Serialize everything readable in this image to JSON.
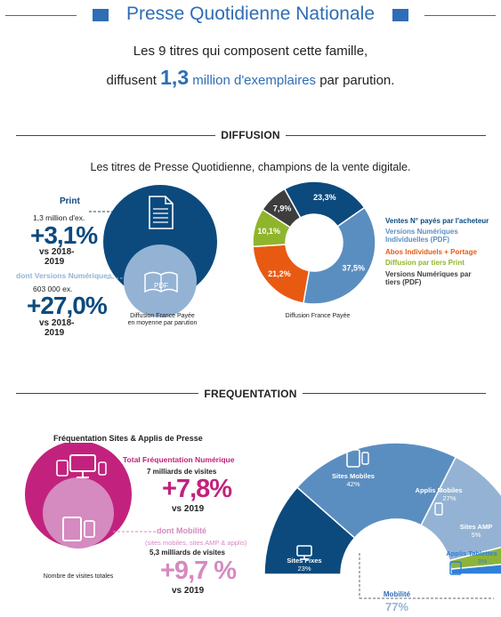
{
  "header": {
    "title": "Presse Quotidienne Nationale",
    "intro_line1": "Les 9 titres qui composent cette famille,",
    "intro_pre": "diffusent",
    "intro_big": "1,3",
    "intro_blue": "million d'exemplaires",
    "intro_post": "par parution."
  },
  "diffusion": {
    "section_label": "DIFFUSION",
    "subtitle": "Les titres de Presse Quotidienne, champions de la vente digitale.",
    "print_label": "Print",
    "print_volume": "1,3 million d'ex.",
    "print_growth": "+3,1%",
    "print_period_a": "vs 2018-",
    "print_period_b": "2019",
    "digital_label": "dont Versions Numériques",
    "digital_volume": "603 000 ex.",
    "digital_growth": "+27,0%",
    "digital_period_a": "vs 2018-",
    "digital_period_b": "2019",
    "pdf_icon_label": "PDF",
    "circle_caption_1": "Diffusion France Payée",
    "circle_caption_2": "en moyenne par parution",
    "donut_caption": "Diffusion France Payée"
  },
  "frequentation": {
    "section_label": "FREQUENTATION",
    "chart_title": "Fréquentation Sites & Applis de Presse",
    "total_label": "Total Fréquentation Numérique",
    "total_visits": "7 milliards de visites",
    "total_growth": "+7,8%",
    "total_period": "vs 2019",
    "mobile_label": "dont Mobilité",
    "mobile_sub": "(sites mobiles, sites AMP & applis)",
    "mobile_visits": "5,3 milliards de visites",
    "mobile_growth": "+9,7 %",
    "mobile_period": "vs 2019",
    "circle_caption": "Nombre de visites totales",
    "mobility_label": "Mobilité",
    "mobility_value": "77%"
  },
  "colors": {
    "navy": "#0c4a7d",
    "mid_blue": "#5b8ec0",
    "light_blue": "#94b3d4",
    "accent_blue": "#2f6db5",
    "dark_gray": "#3d3d3d",
    "green": "#8fb52c",
    "orange": "#e85a12",
    "magenta": "#c2227d",
    "pink": "#d58ac0",
    "amp_green": "#8db43a",
    "tablet_blue": "#2f80d8"
  },
  "chart_data": [
    {
      "type": "pie",
      "title": "Diffusion France Payée",
      "categories": [
        "Print",
        "dont Versions Numériques"
      ],
      "values": [
        1.3,
        0.603
      ],
      "units": [
        "million d'ex.",
        "ex."
      ]
    },
    {
      "type": "pie",
      "title": "Diffusion France Payée",
      "categories": [
        "Ventes N° payés par l'acheteur",
        "Versions Numériques Individuelles (PDF)",
        "Abos Individuels + Portage",
        "Diffusion par tiers Print",
        "Versions Numériques par tiers (PDF)"
      ],
      "values": [
        23.3,
        37.5,
        21.2,
        10.1,
        7.9
      ],
      "labels": [
        "23,3%",
        "37,5%",
        "21,2%",
        "10,1%",
        "7,9%"
      ],
      "legend": [
        "Ventes N° payés par l'acheteur",
        "Versions Numériques Individuelles (PDF)",
        "Abos Individuels + Portage",
        "Diffusion par tiers Print",
        "Versions Numériques par tiers (PDF)"
      ],
      "legend_position": "right"
    },
    {
      "type": "pie",
      "title": "Fréquentation Sites & Applis de Presse",
      "categories": [
        "Total Fréquentation Numérique",
        "dont Mobilité"
      ],
      "values": [
        7,
        5.3
      ],
      "unit": "milliards de visites"
    },
    {
      "type": "pie",
      "title": "",
      "categories": [
        "Sites Fixes",
        "Sites Mobiles",
        "Applis Mobiles",
        "Sites AMP",
        "Applis Tablettes"
      ],
      "values": [
        23,
        42,
        27,
        5,
        3
      ],
      "labels": [
        "23%",
        "42%",
        "27%",
        "5%",
        "3%"
      ]
    }
  ]
}
